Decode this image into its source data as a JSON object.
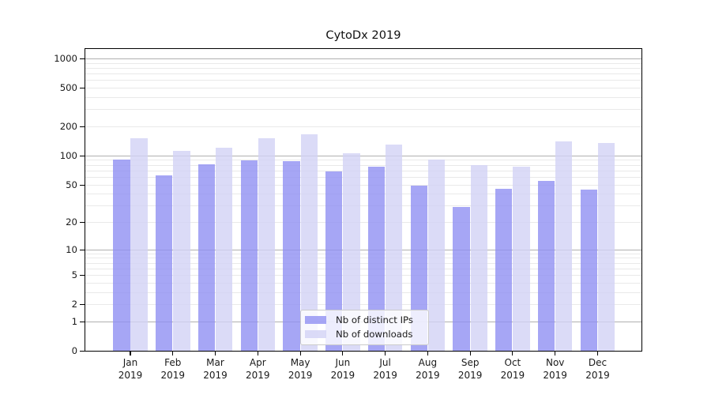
{
  "title": "CytoDx 2019",
  "colors": {
    "ips_bar": "#9090f2",
    "downloads_bar": "#d2d2f5",
    "bar_alpha": 0.8,
    "major_gridline": "#b0b0b0",
    "minor_gridline": "#e9e9e9",
    "axis": "#000000",
    "text": "#1a1a1a"
  },
  "legend": {
    "items": [
      "Nb of distinct IPs",
      "Nb of downloads"
    ]
  },
  "chart_data": {
    "type": "bar",
    "title": "CytoDx 2019",
    "xlabel": "",
    "ylabel": "",
    "yscale": "log1p",
    "ylim": [
      0,
      1265
    ],
    "yticks": [
      0,
      1,
      2,
      5,
      10,
      20,
      50,
      100,
      200,
      500,
      1000
    ],
    "minor_grid_values": [
      2,
      3,
      4,
      5,
      6,
      7,
      8,
      9,
      20,
      30,
      40,
      50,
      60,
      70,
      80,
      90,
      200,
      300,
      400,
      500,
      600,
      700,
      800,
      900
    ],
    "major_grid_values": [
      1,
      10,
      100,
      1000
    ],
    "grid": true,
    "legend_position": "lower center",
    "categories": [
      "Jan",
      "Feb",
      "Mar",
      "Apr",
      "May",
      "Jun",
      "Jul",
      "Aug",
      "Sep",
      "Oct",
      "Nov",
      "Dec"
    ],
    "year_label": "2019",
    "series": [
      {
        "name": "Nb of distinct IPs",
        "values": [
          90,
          62,
          81,
          89,
          87,
          68,
          77,
          49,
          29,
          45,
          54,
          44
        ]
      },
      {
        "name": "Nb of downloads",
        "values": [
          150,
          111,
          121,
          150,
          165,
          105,
          130,
          90,
          79,
          77,
          140,
          136
        ]
      }
    ]
  }
}
